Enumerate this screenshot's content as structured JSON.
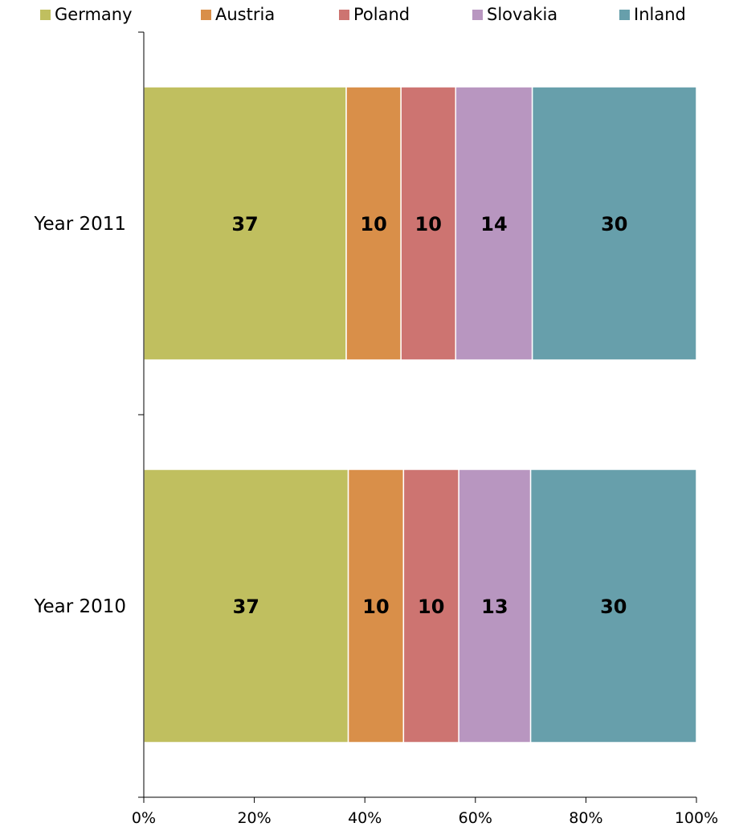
{
  "chart_data": {
    "type": "bar",
    "orientation": "horizontal",
    "stacked": "percent",
    "categories": [
      "Year 2011",
      "Year 2010"
    ],
    "series": [
      {
        "name": "Germany",
        "color": "#c0bf5f",
        "values": [
          37,
          37
        ]
      },
      {
        "name": "Austria",
        "color": "#d98f49",
        "values": [
          10,
          10
        ]
      },
      {
        "name": "Poland",
        "color": "#cd7471",
        "values": [
          10,
          10
        ]
      },
      {
        "name": "Slovakia",
        "color": "#b896c0",
        "values": [
          14,
          13
        ]
      },
      {
        "name": "Inland",
        "color": "#679fab",
        "values": [
          30,
          30
        ]
      }
    ],
    "xaxis": {
      "ticks": [
        0,
        20,
        40,
        60,
        80,
        100
      ],
      "tick_labels": [
        "0%",
        "20%",
        "40%",
        "60%",
        "80%",
        "100%"
      ],
      "range": [
        0,
        100
      ]
    },
    "legend": "top",
    "grid": false,
    "title": "",
    "xlabel": "",
    "ylabel": ""
  }
}
